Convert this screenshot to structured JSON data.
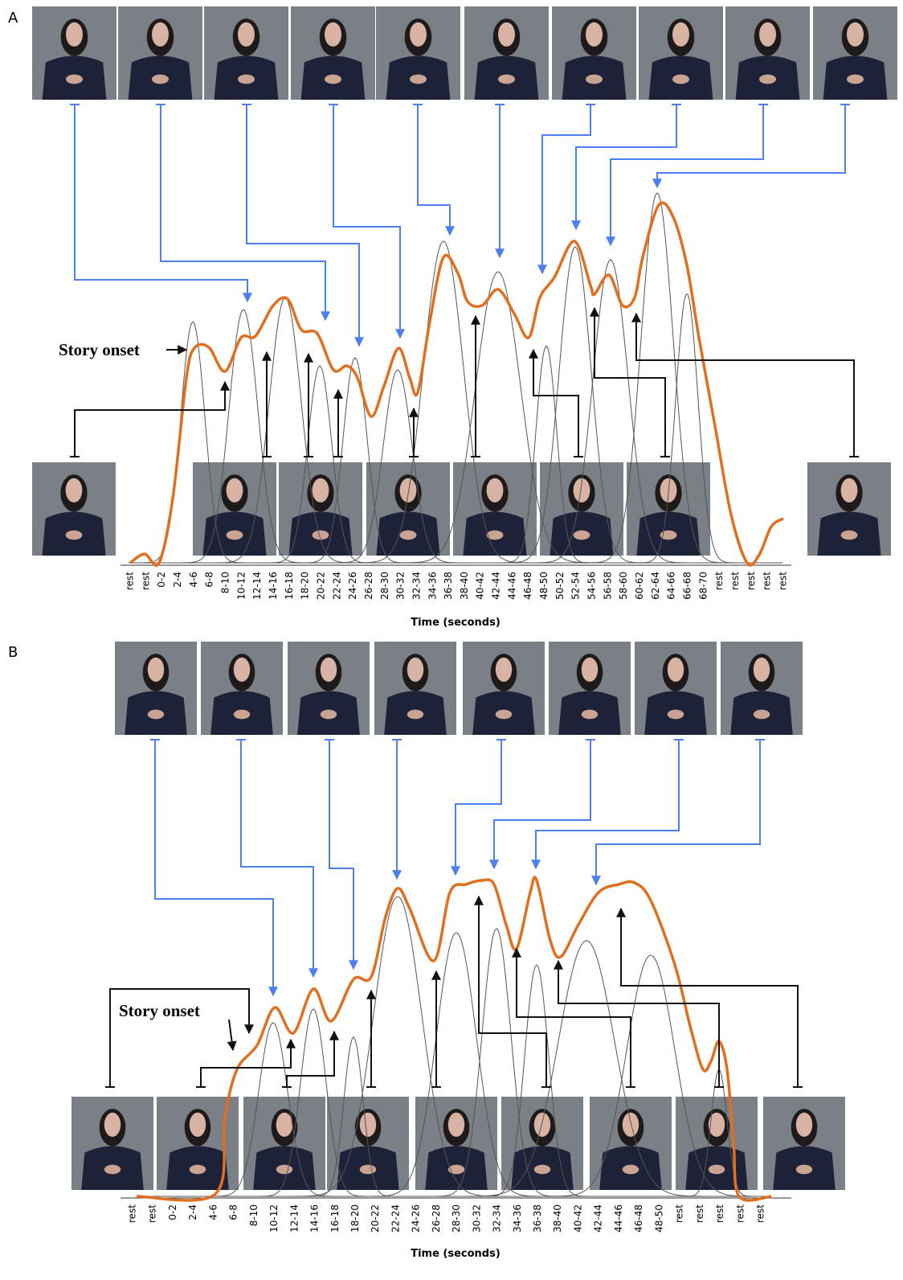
{
  "panels": [
    {
      "label": "A",
      "annotation": "Story onset",
      "axis_title": "Time (seconds)",
      "categories": [
        "rest",
        "rest",
        "0-2",
        "2-4",
        "4-6",
        "6-8",
        "8-10",
        "10-12",
        "12-14",
        "14-16",
        "16-18",
        "18-20",
        "20-22",
        "22-24",
        "24-26",
        "26-28",
        "28-30",
        "30-32",
        "32-34",
        "34-36",
        "36-38",
        "38-40",
        "40-42",
        "42-44",
        "44-46",
        "46-48",
        "48-50",
        "50-52",
        "52-54",
        "54-56",
        "56-58",
        "58-60",
        "60-62",
        "62-64",
        "64-66",
        "66-68",
        "68-70",
        "rest",
        "rest",
        "rest",
        "rest",
        "rest"
      ]
    },
    {
      "label": "B",
      "annotation": "Story onset",
      "axis_title": "Time (seconds)",
      "categories": [
        "rest",
        "rest",
        "0-2",
        "2-4",
        "4-6",
        "6-8",
        "8-10",
        "10-12",
        "12-14",
        "14-16",
        "16-18",
        "18-20",
        "20-22",
        "22-24",
        "24-26",
        "26-28",
        "28-30",
        "30-32",
        "32-34",
        "34-36",
        "36-38",
        "38-40",
        "40-42",
        "42-44",
        "44-46",
        "46-48",
        "48-50",
        "rest",
        "rest",
        "rest",
        "rest",
        "rest"
      ]
    }
  ]
}
